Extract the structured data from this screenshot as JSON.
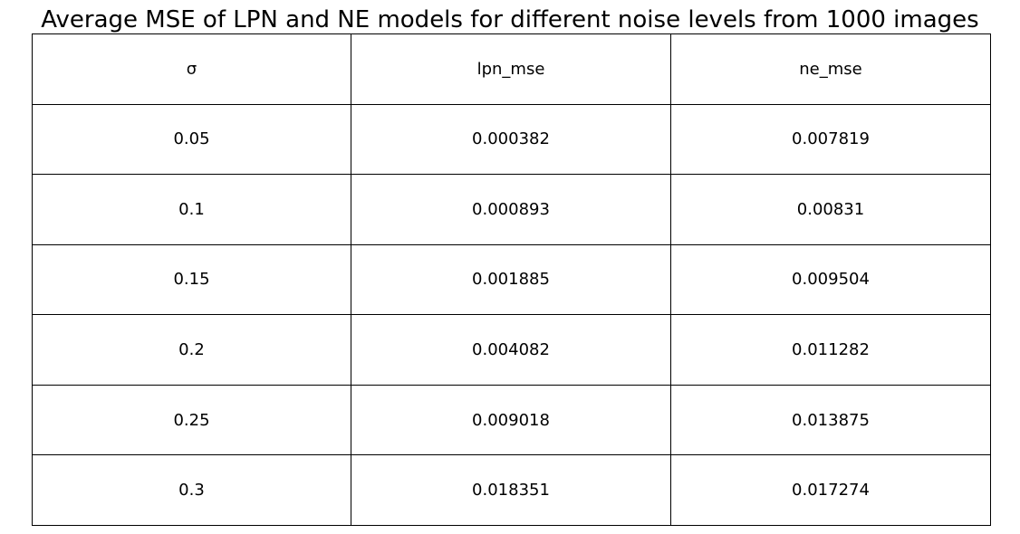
{
  "chart_data": {
    "type": "table",
    "title": "Average MSE of LPN and NE models for different noise levels from 1000 images",
    "columns": [
      "σ",
      "lpn_mse",
      "ne_mse"
    ],
    "rows": [
      [
        "0.05",
        "0.000382",
        "0.007819"
      ],
      [
        "0.1",
        "0.000893",
        "0.00831"
      ],
      [
        "0.15",
        "0.001885",
        "0.009504"
      ],
      [
        "0.2",
        "0.004082",
        "0.011282"
      ],
      [
        "0.25",
        "0.009018",
        "0.013875"
      ],
      [
        "0.3",
        "0.018351",
        "0.017274"
      ]
    ]
  }
}
